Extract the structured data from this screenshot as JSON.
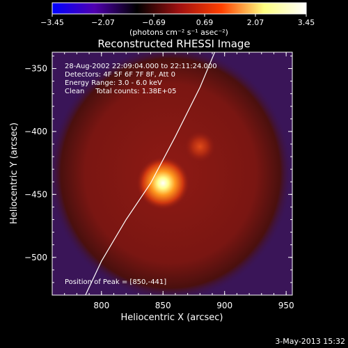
{
  "chart_data": {
    "type": "heatmap",
    "title": "Reconstructed RHESSI Image",
    "xlabel": "Heliocentric X (arcsec)",
    "ylabel": "Heliocentric Y (arcsec)",
    "xlim": [
      760,
      955
    ],
    "ylim": [
      -530,
      -337
    ],
    "xticks": [
      800,
      850,
      900,
      950
    ],
    "xtick_labels": [
      "800",
      "850",
      "900",
      "950"
    ],
    "yticks": [
      -350,
      -400,
      -450,
      -500
    ],
    "ytick_labels": [
      "−350",
      "−400",
      "−450",
      "−500"
    ],
    "colorbar": {
      "range": [
        -3.45,
        3.45
      ],
      "tick_labels": [
        "−3.45",
        "−2.07",
        "−0.69",
        "0.69",
        "2.07",
        "3.45"
      ],
      "unit_label": "(photons cm⁻² s⁻¹ asec⁻²)",
      "colormap": [
        "#0000ff",
        "#5000b0",
        "#000000",
        "#a01010",
        "#ff4000",
        "#ffff80",
        "#ffffff"
      ]
    },
    "annotations": [
      "28-Aug-2002 22:09:04.000 to 22:11:24.000",
      "Detectors: 4F 5F 6F 7F 8F, Att 0",
      "Energy Range: 3.0 - 6.0 keV",
      "Clean     Total counts: 1.38E+05"
    ],
    "peak_label": "Position of Peak = [850,-441]",
    "sources": [
      {
        "x": 850,
        "y": -441,
        "level": 3.45
      },
      {
        "x": 880,
        "y": -412,
        "level": 1.6
      }
    ],
    "disk_fill_color": "#8e1a14",
    "background_color": "#3a1558",
    "limb_curve": [
      [
        787,
        -530
      ],
      [
        800,
        -503
      ],
      [
        820,
        -470
      ],
      [
        840,
        -441
      ],
      [
        860,
        -404
      ],
      [
        880,
        -365
      ],
      [
        892,
        -337
      ]
    ]
  },
  "footer": {
    "date": "3-May-2013 15:32"
  }
}
